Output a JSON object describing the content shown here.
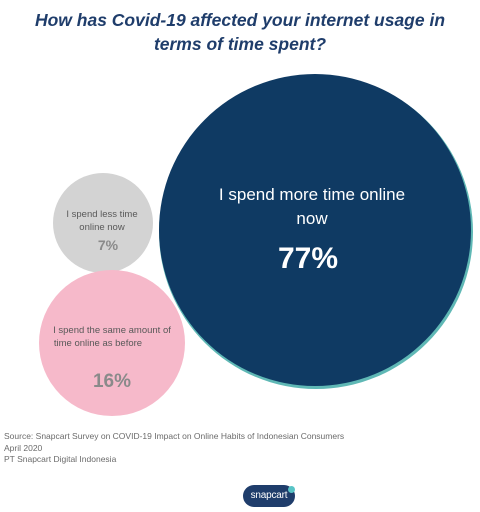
{
  "chart_data": {
    "type": "bubble",
    "title": "How has Covid-19 affected your internet usage in terms of time spent?",
    "series": [
      {
        "label": "I spend more time online now",
        "value": 77,
        "value_label": "77%",
        "color": "#0f3a63"
      },
      {
        "label": "I spend less time online now",
        "value": 7,
        "value_label": "7%",
        "color": "#d3d3d3"
      },
      {
        "label": "I spend the same amount of time online as before",
        "value": 16,
        "value_label": "16%",
        "color": "#f6b9ca"
      }
    ]
  },
  "source": {
    "line1": "Source: Snapcart Survey on COVID-19 Impact on Online Habits of Indonesian Consumers",
    "line2": "April 2020",
    "line3": "PT Snapcart Digital Indonesia"
  },
  "logo": {
    "text": "snapcart"
  }
}
